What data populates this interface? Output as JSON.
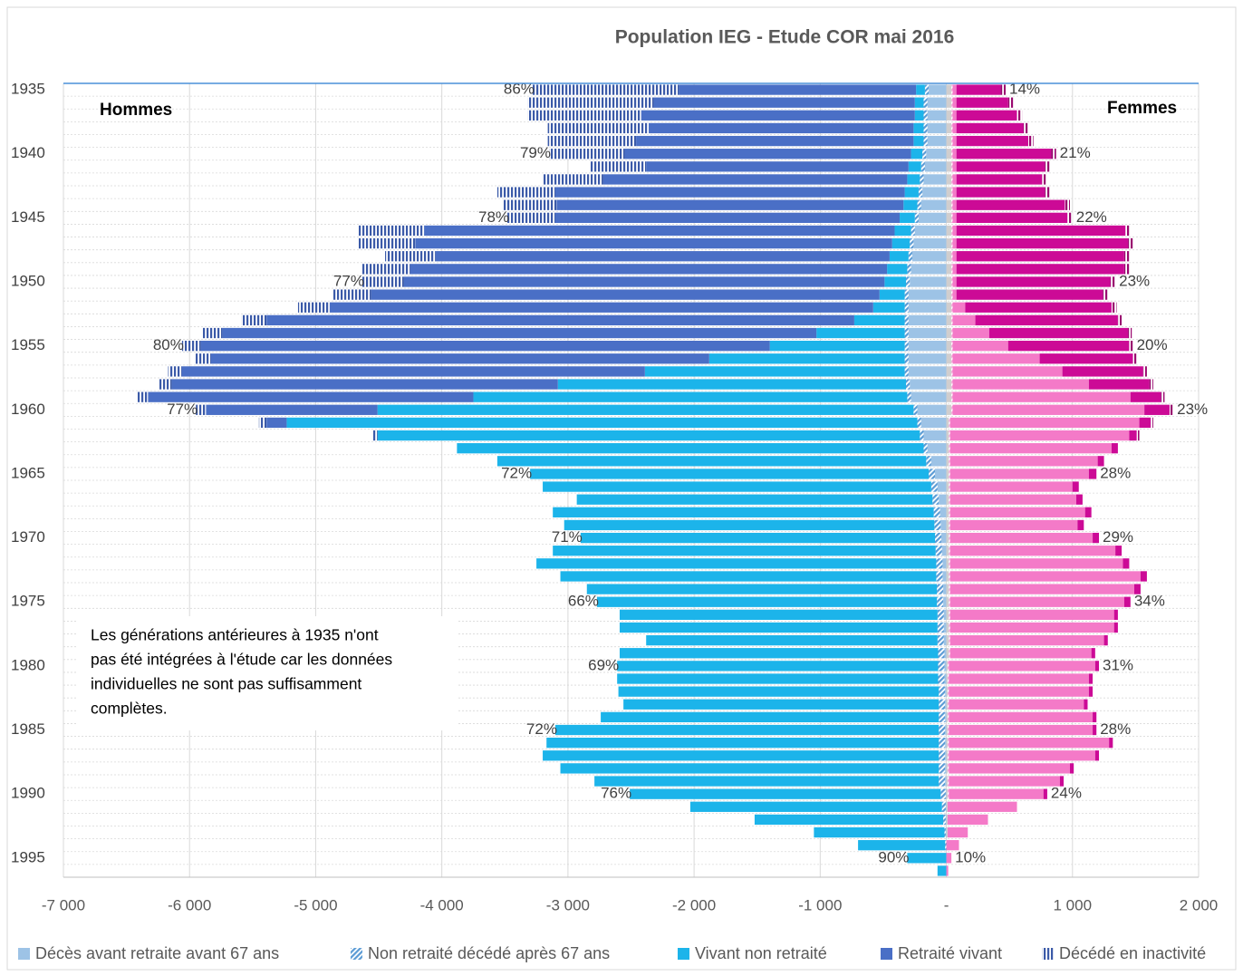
{
  "chart_data": {
    "type": "pyramid",
    "title": "Population IEG - Etude COR mai 2016",
    "left_label": "Hommes",
    "right_label": "Femmes",
    "note": [
      "Les générations antérieures à 1935 n'ont",
      "pas été intégrées à l'étude car les données",
      "individuelles ne sont pas suffisamment",
      "complètes."
    ],
    "categories": [
      1935,
      null,
      null,
      null,
      null,
      1940,
      null,
      null,
      null,
      null,
      1945,
      null,
      null,
      null,
      null,
      1950,
      null,
      null,
      null,
      null,
      1955,
      null,
      null,
      null,
      null,
      1960,
      null,
      null,
      null,
      null,
      1965,
      null,
      null,
      null,
      null,
      1970,
      null,
      null,
      null,
      null,
      1975,
      null,
      null,
      null,
      null,
      1980,
      null,
      null,
      null,
      null,
      1985,
      null,
      null,
      null,
      null,
      1990,
      null,
      null,
      null,
      null,
      1995,
      null
    ],
    "xlim": [
      -7000,
      2000
    ],
    "xticks": [
      {
        "value": -7000,
        "label": "-7 000"
      },
      {
        "value": -6000,
        "label": "-6 000"
      },
      {
        "value": -5000,
        "label": "-5 000"
      },
      {
        "value": -4000,
        "label": "-4 000"
      },
      {
        "value": -3000,
        "label": "-3 000"
      },
      {
        "value": -2000,
        "label": "-2 000"
      },
      {
        "value": -1000,
        "label": "-1 000"
      },
      {
        "value": 0,
        "label": "-"
      },
      {
        "value": 1000,
        "label": "1 000"
      },
      {
        "value": 2000,
        "label": "2 000"
      }
    ],
    "grid": true,
    "series": [
      {
        "name": "Décès avant retraite avant 67 ans",
        "color": "#9dc3e6",
        "color_femmes": "#d0cece",
        "hatch": "none",
        "hommes": [
          -140,
          -150,
          -150,
          -150,
          -150,
          -160,
          -170,
          -180,
          -190,
          -200,
          -220,
          -250,
          -260,
          -270,
          -280,
          -290,
          -300,
          -300,
          -300,
          -300,
          -300,
          -300,
          -300,
          -290,
          -280,
          -230,
          -200,
          -180,
          -150,
          -120,
          -90,
          -70,
          -60,
          -50,
          -45,
          -40,
          -35,
          -30,
          -30,
          -25,
          -25,
          -20,
          -20,
          -20,
          -15,
          -15,
          -15,
          -10,
          -10,
          -10,
          -10,
          -10,
          -10,
          -10,
          -10,
          -5,
          -5,
          -5,
          -5,
          0,
          0,
          0
        ],
        "femmes": [
          40,
          40,
          40,
          40,
          40,
          40,
          40,
          40,
          40,
          40,
          40,
          40,
          40,
          40,
          40,
          40,
          40,
          40,
          40,
          40,
          40,
          40,
          40,
          40,
          40,
          40,
          20,
          20,
          20,
          20,
          20,
          20,
          20,
          20,
          20,
          20,
          20,
          20,
          20,
          20,
          20,
          20,
          20,
          20,
          20,
          10,
          10,
          10,
          10,
          10,
          10,
          10,
          10,
          10,
          10,
          10,
          10,
          10,
          10,
          0,
          0,
          0
        ]
      },
      {
        "name": "Non retraité décédé après 67 ans",
        "color": "#5b9bd5",
        "color_femmes": "#f4a6d7",
        "hatch": "diagonal",
        "hommes": [
          -30,
          -30,
          -30,
          -30,
          -30,
          -30,
          -30,
          -30,
          -30,
          -30,
          -30,
          -30,
          -30,
          -30,
          -30,
          -30,
          -30,
          -30,
          -30,
          -30,
          -30,
          -30,
          -30,
          -30,
          -30,
          -30,
          -30,
          -30,
          -30,
          -40,
          -50,
          -50,
          -50,
          -50,
          -50,
          -50,
          -50,
          -50,
          -50,
          -50,
          -50,
          -50,
          -50,
          -50,
          -50,
          -50,
          -50,
          -50,
          -50,
          -50,
          -50,
          -50,
          -50,
          -50,
          -50,
          -40,
          -30,
          -20,
          -10,
          -10,
          0,
          0
        ],
        "femmes": [
          10,
          10,
          10,
          10,
          10,
          10,
          10,
          10,
          10,
          10,
          10,
          10,
          10,
          10,
          10,
          10,
          10,
          10,
          10,
          10,
          10,
          10,
          10,
          10,
          10,
          10,
          10,
          10,
          10,
          10,
          10,
          10,
          10,
          10,
          10,
          10,
          10,
          10,
          10,
          10,
          10,
          10,
          10,
          10,
          10,
          10,
          10,
          10,
          10,
          10,
          10,
          10,
          10,
          10,
          10,
          10,
          0,
          0,
          0,
          0,
          0,
          0
        ]
      },
      {
        "name": "Vivant non retraité",
        "color": "#1cb4ea",
        "color_femmes": "#f47ac8",
        "hatch": "none",
        "hommes": [
          -70,
          -70,
          -70,
          -80,
          -80,
          -90,
          -100,
          -100,
          -110,
          -110,
          -120,
          -130,
          -140,
          -150,
          -160,
          -170,
          -200,
          -250,
          -400,
          -700,
          -1070,
          -1550,
          -2060,
          -2760,
          -3440,
          -4250,
          -5000,
          -4300,
          -3700,
          -3400,
          -3160,
          -3080,
          -2820,
          -3020,
          -2935,
          -2810,
          -3035,
          -3170,
          -2980,
          -2775,
          -2695,
          -2520,
          -2520,
          -2310,
          -2525,
          -2545,
          -2545,
          -2540,
          -2500,
          -2680,
          -3040,
          -3110,
          -3140,
          -3000,
          -2730,
          -2465,
          -1995,
          -1495,
          -1035,
          -690,
          -310,
          -70
        ],
        "femmes": [
          30,
          30,
          30,
          30,
          30,
          30,
          30,
          30,
          30,
          30,
          30,
          30,
          30,
          30,
          30,
          30,
          30,
          100,
          180,
          290,
          440,
          690,
          870,
          1080,
          1410,
          1520,
          1500,
          1420,
          1280,
          1170,
          1100,
          970,
          1000,
          1070,
          1010,
          1130,
          1310,
          1370,
          1510,
          1460,
          1380,
          1300,
          1300,
          1220,
          1120,
          1160,
          1110,
          1110,
          1070,
          1140,
          1140,
          1270,
          1160,
          960,
          880,
          750,
          550,
          320,
          160,
          100,
          40,
          15
        ]
      },
      {
        "name": "Retraité vivant",
        "color": "#4a6fc6",
        "color_femmes": "#cc0a96",
        "hatch": "none",
        "hommes": [
          -1880,
          -2070,
          -2170,
          -2100,
          -2200,
          -2270,
          -2080,
          -2410,
          -2770,
          -2750,
          -2730,
          -3730,
          -3780,
          -3600,
          -3780,
          -3810,
          -4030,
          -4310,
          -4660,
          -4710,
          -4510,
          -3950,
          -3670,
          -3060,
          -2580,
          -1360,
          -160,
          0,
          0,
          0,
          0,
          0,
          0,
          0,
          0,
          0,
          0,
          0,
          0,
          0,
          0,
          0,
          0,
          0,
          0,
          0,
          0,
          0,
          0,
          0,
          0,
          0,
          0,
          0,
          0,
          0,
          0,
          0,
          0,
          0,
          0,
          0
        ],
        "femmes": [
          350,
          410,
          480,
          530,
          570,
          750,
          700,
          680,
          700,
          860,
          880,
          1340,
          1360,
          1330,
          1330,
          1220,
          1160,
          1160,
          1130,
          1100,
          960,
          740,
          640,
          480,
          240,
          200,
          90,
          60,
          50,
          50,
          60,
          50,
          50,
          50,
          50,
          50,
          50,
          50,
          50,
          50,
          50,
          30,
          30,
          30,
          30,
          30,
          30,
          30,
          30,
          30,
          30,
          30,
          30,
          30,
          30,
          30,
          0,
          0,
          0,
          0,
          0,
          0
        ]
      },
      {
        "name": "Décédé en inactivité",
        "color": "#3b5aa8",
        "color_femmes": "#99086f",
        "hatch": "vertical",
        "hommes": [
          -1160,
          -1000,
          -900,
          -800,
          -700,
          -600,
          -450,
          -480,
          -460,
          -420,
          -380,
          -520,
          -450,
          -400,
          -380,
          -330,
          -300,
          -250,
          -200,
          -160,
          -150,
          -130,
          -110,
          -100,
          -90,
          -80,
          -60,
          -40,
          0,
          0,
          0,
          0,
          0,
          0,
          0,
          0,
          0,
          0,
          0,
          0,
          0,
          0,
          0,
          0,
          0,
          0,
          0,
          0,
          0,
          0,
          0,
          0,
          0,
          0,
          0,
          0,
          0,
          0,
          0,
          0,
          0,
          0
        ],
        "femmes": [
          40,
          40,
          40,
          40,
          40,
          40,
          40,
          40,
          40,
          40,
          40,
          40,
          40,
          40,
          40,
          40,
          40,
          40,
          30,
          30,
          30,
          30,
          30,
          30,
          30,
          30,
          20,
          20,
          0,
          0,
          0,
          0,
          0,
          0,
          0,
          0,
          0,
          0,
          0,
          0,
          0,
          0,
          0,
          0,
          0,
          0,
          0,
          0,
          0,
          0,
          0,
          0,
          0,
          0,
          0,
          0,
          0,
          0,
          0,
          0,
          0,
          0
        ]
      }
    ],
    "pct_hommes": [
      "86%",
      null,
      null,
      null,
      null,
      "79%",
      null,
      null,
      null,
      null,
      "78%",
      null,
      null,
      null,
      null,
      "77%",
      null,
      null,
      null,
      null,
      "80%",
      null,
      null,
      null,
      null,
      "77%",
      null,
      null,
      null,
      null,
      "72%",
      null,
      null,
      null,
      null,
      "71%",
      null,
      null,
      null,
      null,
      "66%",
      null,
      null,
      null,
      null,
      "69%",
      null,
      null,
      null,
      null,
      "72%",
      null,
      null,
      null,
      null,
      "76%",
      null,
      null,
      null,
      null,
      "90%",
      null
    ],
    "pct_femmes": [
      "14%",
      null,
      null,
      null,
      null,
      "21%",
      null,
      null,
      null,
      null,
      "22%",
      null,
      null,
      null,
      null,
      "23%",
      null,
      null,
      null,
      null,
      "20%",
      null,
      null,
      null,
      null,
      "23%",
      null,
      null,
      null,
      null,
      "28%",
      null,
      null,
      null,
      null,
      "29%",
      null,
      null,
      null,
      null,
      "34%",
      null,
      null,
      null,
      null,
      "31%",
      null,
      null,
      null,
      null,
      "28%",
      null,
      null,
      null,
      null,
      "24%",
      null,
      null,
      null,
      null,
      "10%",
      null
    ]
  }
}
